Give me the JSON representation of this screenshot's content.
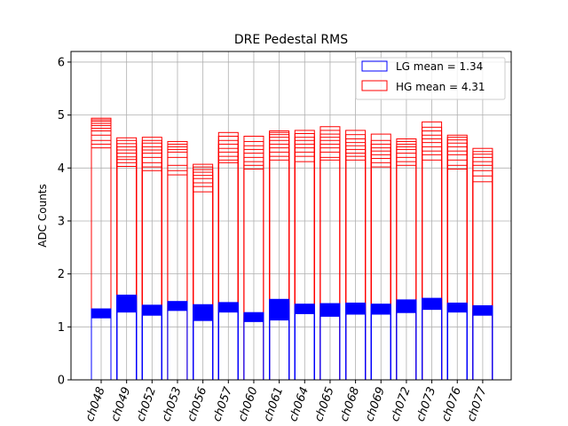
{
  "chart_data": {
    "type": "bar",
    "title": "DRE Pedestal RMS",
    "xlabel": "",
    "ylabel": "ADC Counts",
    "ylim": [
      0,
      6.2
    ],
    "yticks": [
      0,
      1,
      2,
      3,
      4,
      5,
      6
    ],
    "grid": true,
    "legend_position": "top-right",
    "categories": [
      "ch048",
      "ch049",
      "ch052",
      "ch053",
      "ch056",
      "ch057",
      "ch060",
      "ch061",
      "ch064",
      "ch065",
      "ch068",
      "ch069",
      "ch072",
      "ch073",
      "ch076",
      "ch077"
    ],
    "series": [
      {
        "name": "LG mean = 1.34",
        "color": "#0000ff",
        "fill_band": true,
        "values": [
          [
            1.17,
            1.22,
            1.26,
            1.29,
            1.32,
            1.34
          ],
          [
            1.28,
            1.34,
            1.38,
            1.43,
            1.48,
            1.52,
            1.57,
            1.6
          ],
          [
            1.22,
            1.27,
            1.31,
            1.35,
            1.38,
            1.41
          ],
          [
            1.31,
            1.35,
            1.39,
            1.43,
            1.46,
            1.48
          ],
          [
            1.12,
            1.17,
            1.22,
            1.27,
            1.31,
            1.36,
            1.42
          ],
          [
            1.28,
            1.32,
            1.36,
            1.4,
            1.43,
            1.46
          ],
          [
            1.1,
            1.14,
            1.18,
            1.22,
            1.25,
            1.27
          ],
          [
            1.13,
            1.2,
            1.27,
            1.33,
            1.39,
            1.44,
            1.48,
            1.52
          ],
          [
            1.25,
            1.29,
            1.33,
            1.37,
            1.4,
            1.43
          ],
          [
            1.2,
            1.25,
            1.3,
            1.34,
            1.38,
            1.42,
            1.44
          ],
          [
            1.24,
            1.28,
            1.32,
            1.36,
            1.4,
            1.43,
            1.45
          ],
          [
            1.24,
            1.28,
            1.32,
            1.36,
            1.4,
            1.43
          ],
          [
            1.27,
            1.31,
            1.35,
            1.39,
            1.43,
            1.47,
            1.51
          ],
          [
            1.33,
            1.37,
            1.41,
            1.45,
            1.49,
            1.52,
            1.54
          ],
          [
            1.28,
            1.32,
            1.36,
            1.4,
            1.43,
            1.45
          ],
          [
            1.22,
            1.26,
            1.3,
            1.34,
            1.37,
            1.4
          ]
        ]
      },
      {
        "name": "HG mean = 4.31",
        "color": "#ff0000",
        "fill_band": false,
        "values": [
          [
            4.38,
            4.45,
            4.52,
            4.62,
            4.7,
            4.75,
            4.8,
            4.84,
            4.88,
            4.91,
            4.94
          ],
          [
            4.03,
            4.1,
            4.16,
            4.21,
            4.28,
            4.34,
            4.4,
            4.46,
            4.52,
            4.57
          ],
          [
            3.95,
            4.02,
            4.1,
            4.2,
            4.28,
            4.34,
            4.4,
            4.47,
            4.52,
            4.58
          ],
          [
            3.87,
            3.95,
            4.05,
            4.2,
            4.3,
            4.35,
            4.4,
            4.45,
            4.5
          ],
          [
            3.55,
            3.65,
            3.72,
            3.8,
            3.86,
            3.92,
            3.97,
            4.02,
            4.07
          ],
          [
            4.1,
            4.15,
            4.22,
            4.3,
            4.37,
            4.45,
            4.52,
            4.6,
            4.67
          ],
          [
            3.98,
            4.05,
            4.12,
            4.2,
            4.28,
            4.35,
            4.42,
            4.5,
            4.6
          ],
          [
            4.15,
            4.22,
            4.3,
            4.38,
            4.45,
            4.52,
            4.58,
            4.63,
            4.67,
            4.7
          ],
          [
            4.12,
            4.22,
            4.3,
            4.38,
            4.45,
            4.52,
            4.58,
            4.65,
            4.71
          ],
          [
            4.15,
            4.2,
            4.3,
            4.38,
            4.45,
            4.52,
            4.58,
            4.64,
            4.71,
            4.78
          ],
          [
            4.15,
            4.22,
            4.28,
            4.35,
            4.42,
            4.48,
            4.55,
            4.63,
            4.71
          ],
          [
            4.02,
            4.1,
            4.18,
            4.25,
            4.32,
            4.38,
            4.45,
            4.52,
            4.64
          ],
          [
            4.05,
            4.12,
            4.2,
            4.28,
            4.35,
            4.4,
            4.45,
            4.5,
            4.55
          ],
          [
            4.15,
            4.25,
            4.32,
            4.4,
            4.48,
            4.55,
            4.62,
            4.7,
            4.77,
            4.87
          ],
          [
            3.98,
            4.05,
            4.15,
            4.25,
            4.32,
            4.4,
            4.47,
            4.53,
            4.58,
            4.62
          ],
          [
            3.74,
            3.85,
            3.95,
            4.05,
            4.12,
            4.2,
            4.26,
            4.31,
            4.37
          ]
        ]
      }
    ]
  }
}
